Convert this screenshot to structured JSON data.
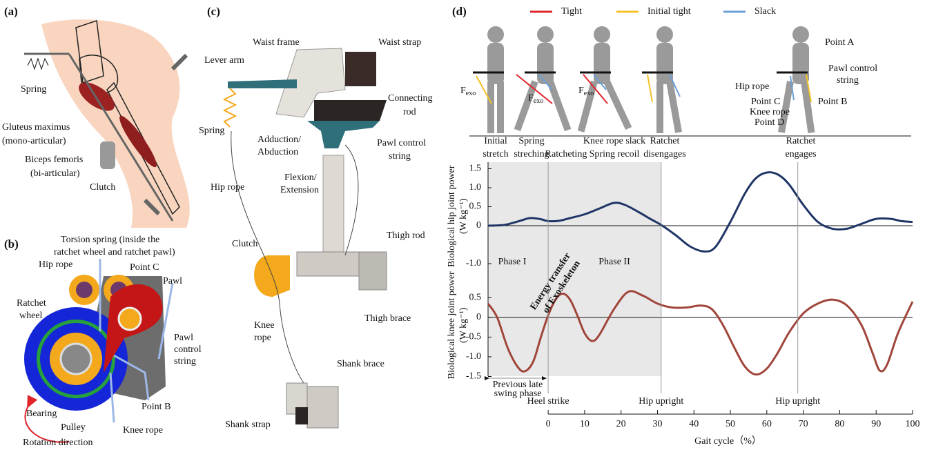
{
  "panels": {
    "a": {
      "label": "(a)",
      "labels": [
        "Spring",
        "Gluteus maximus",
        "(mono-articular)",
        "Biceps femoris",
        "(bi-articular)",
        "Clutch"
      ]
    },
    "b": {
      "label": "(b)",
      "labels": [
        "Torsion spring (inside the",
        "ratchet wheel and ratchet pawl)",
        "Hip rope",
        "Point C",
        "Pawl",
        "Ratchet",
        "wheel",
        "Pawl",
        "control",
        "string",
        "Point B",
        "Bearing",
        "Pulley",
        "Knee rope",
        "Rotation direction"
      ]
    },
    "c": {
      "label": "(c)",
      "labels": [
        "Waist frame",
        "Waist strap",
        "Lever arm",
        "Connecting",
        "rod",
        "Spring",
        "Adduction/",
        "Abduction",
        "Pawl control",
        "string",
        "Flexion/",
        "Extension",
        "Hip rope",
        "Thigh rod",
        "Clutch",
        "Thigh brace",
        "Knee",
        "rope",
        "Shank brace",
        "Shank strap"
      ]
    },
    "d": {
      "label": "(d)",
      "legend": [
        {
          "name": "Tight",
          "color": "#e0242b"
        },
        {
          "name": "Initial tight",
          "color": "#f5c126"
        },
        {
          "name": "Slack",
          "color": "#6a9fd8"
        }
      ],
      "stages": [
        [
          "Initial",
          "stretch"
        ],
        [
          "Spring",
          "streching"
        ],
        [
          "Ratcheting"
        ],
        [
          "Knee rope slack",
          "Spring recoil"
        ],
        [
          "Ratchet",
          "disengages"
        ],
        [
          "Ratchet",
          "engages"
        ]
      ],
      "figure_labels": [
        "Point A",
        "Pawl control",
        "string",
        "Hip rope",
        "Point C",
        "Point B",
        "Knee rope",
        "Point D"
      ],
      "force_label": {
        "main": "F",
        "sub": "exo"
      }
    }
  },
  "chart_data": [
    {
      "type": "line",
      "y_label": [
        "Biological hip joint  power",
        "(W kg⁻¹)"
      ],
      "color": "#1f3566",
      "x": [
        -16.5,
        -12,
        -8,
        -5,
        -2,
        0,
        3,
        6,
        10,
        14,
        18,
        21,
        25,
        28,
        31,
        35,
        39,
        43,
        46,
        50,
        54,
        57,
        60,
        63,
        66,
        70,
        74,
        78,
        82,
        86,
        90,
        94,
        97,
        100
      ],
      "values": [
        0,
        0.02,
        0.12,
        0.2,
        0.17,
        0.12,
        0.13,
        0.2,
        0.3,
        0.45,
        0.6,
        0.55,
        0.35,
        0.18,
        0.02,
        -0.25,
        -0.55,
        -0.68,
        -0.55,
        0.1,
        0.85,
        1.25,
        1.4,
        1.35,
        1.1,
        0.55,
        0.1,
        -0.08,
        -0.08,
        0.05,
        0.18,
        0.18,
        0.12,
        0.1
      ],
      "xlim": [
        -16.5,
        100
      ],
      "ylim": [
        -1.2,
        1.7
      ],
      "yticks": [
        1.5,
        {
          "value": 1,
          "label": "1.0"
        },
        0.5,
        0,
        {
          "value": -1,
          "label": "-1.0"
        }
      ],
      "annotations": [
        "Phase I",
        "Phase II"
      ],
      "shaded_region": [
        -16.5,
        31
      ]
    },
    {
      "type": "line",
      "y_label": [
        "Biological knee joint power",
        "(W kg⁻¹)"
      ],
      "color": "#a0453a",
      "x": [
        -16.5,
        -14,
        -11,
        -8,
        -6,
        -4,
        -2,
        0,
        2,
        4,
        6,
        8,
        10,
        12,
        14,
        18,
        22,
        26,
        30,
        34,
        38,
        42,
        45,
        48,
        51,
        54,
        57,
        60,
        63,
        66,
        70,
        74,
        78,
        82,
        86,
        89,
        91,
        93,
        96,
        100
      ],
      "values": [
        0.35,
        0,
        -0.8,
        -1.3,
        -1.35,
        -1.1,
        -0.5,
        0.05,
        0.45,
        0.6,
        0.45,
        0.05,
        -0.4,
        -0.6,
        -0.45,
        0.2,
        0.65,
        0.55,
        0.35,
        0.25,
        0.25,
        0.3,
        0.2,
        -0.2,
        -0.75,
        -1.25,
        -1.45,
        -1.3,
        -0.9,
        -0.4,
        0.1,
        0.35,
        0.45,
        0.3,
        -0.2,
        -0.9,
        -1.35,
        -1.2,
        -0.4,
        0.4
      ],
      "xlim": [
        -16.5,
        100
      ],
      "ylim": [
        -1.5,
        1.1
      ],
      "yticks": [
        0.5,
        0,
        -0.5,
        {
          "value": -1,
          "label": "-1.0"
        },
        -1.5
      ],
      "xticks": [
        0,
        10,
        20,
        30,
        40,
        50,
        60,
        70,
        80,
        90,
        100
      ],
      "x_label": "Gait cycle（%）",
      "annotations": [
        "Energy transfer",
        "of Exoskeleton"
      ],
      "previous_phase_label": [
        "Previous late",
        "swing phase"
      ],
      "events": [
        {
          "x": 0,
          "label": "Heel strike"
        },
        {
          "x": 31,
          "label": "Hip upright"
        },
        {
          "x": 68.5,
          "label": "Hip upright"
        }
      ]
    }
  ]
}
